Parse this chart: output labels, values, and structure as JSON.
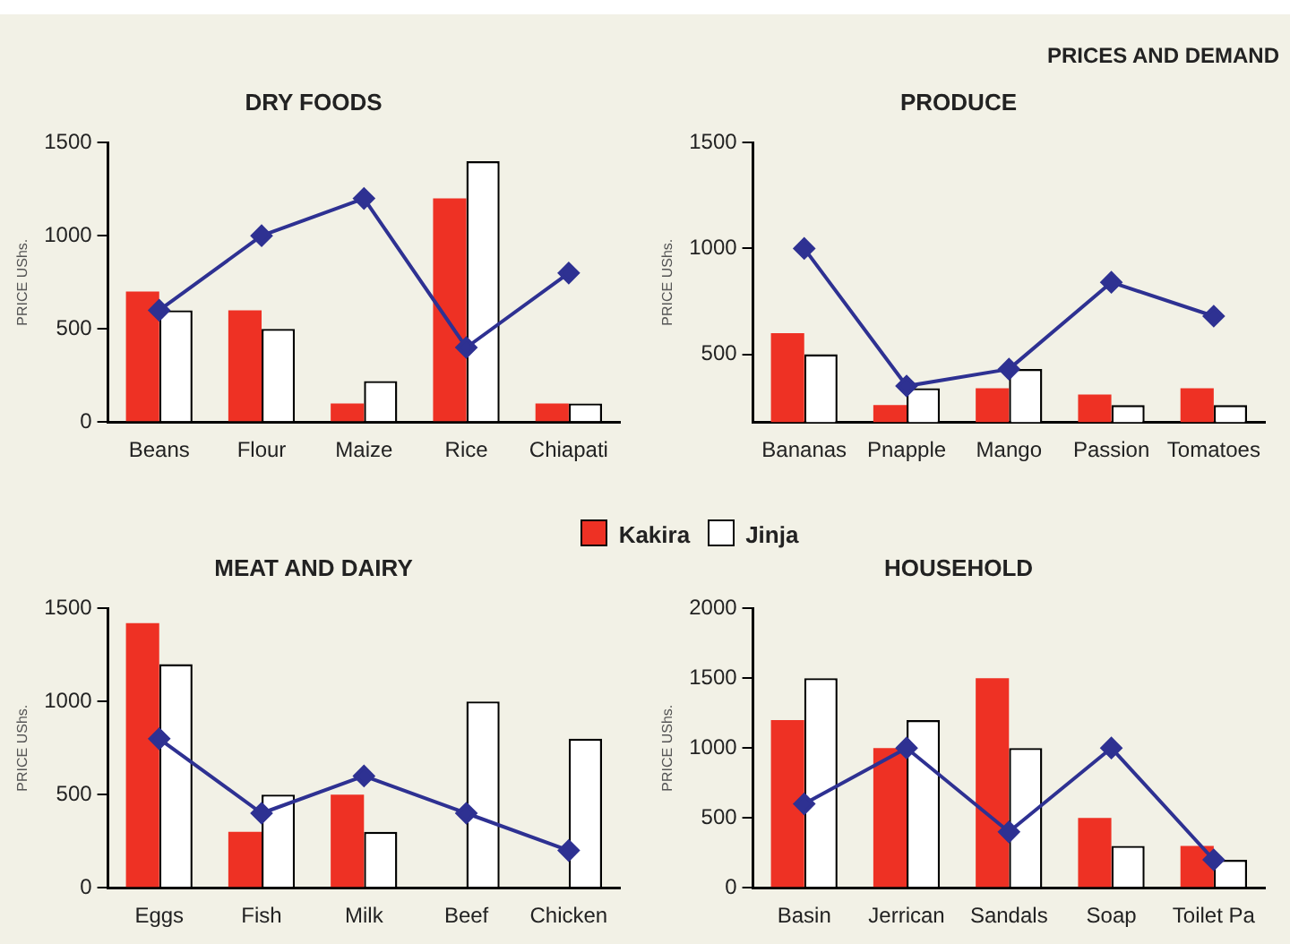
{
  "chart_data": [
    {
      "type": "bar",
      "title": "DRY FOODS",
      "ylabel": "PRICE UShs.",
      "categories": [
        "Beans",
        "Flour",
        "Maize",
        "Rice",
        "Chiapati"
      ],
      "ylim": [
        0,
        1500
      ],
      "yticks": [
        0,
        500,
        1000,
        1500
      ],
      "legend": "bottom",
      "marker": "diamond",
      "annotations": [
        "PRICES AND DEMAND"
      ],
      "series": [
        {
          "name": "Kakira",
          "color": "#ee3124",
          "values": [
            700,
            600,
            100,
            1200,
            100
          ]
        },
        {
          "name": "Jinja",
          "color": "#ffffff",
          "values": [
            600,
            500,
            220,
            1400,
            100
          ]
        },
        {
          "type": "line",
          "color": "#2e3192",
          "values": [
            600,
            1000,
            1200,
            400,
            800
          ]
        }
      ]
    },
    {
      "type": "bar",
      "title": "PRODUCE",
      "ylabel": "PRICE UShs.",
      "categories": [
        "Bananas",
        "Pnapple",
        "Mango",
        "Passion",
        "Tomatoes"
      ],
      "ylim": [
        180,
        1500
      ],
      "yticks": [
        500,
        1000,
        1500
      ],
      "marker": "diamond",
      "series": [
        {
          "color": "#ee3124",
          "values": [
            600,
            260,
            340,
            310,
            340
          ]
        },
        {
          "color": "#ffffff",
          "values": [
            500,
            340,
            430,
            260,
            260
          ]
        },
        {
          "type": "line",
          "color": "#2e3192",
          "values": [
            1000,
            350,
            430,
            840,
            680
          ]
        }
      ]
    },
    {
      "type": "bar",
      "title": "MEAT AND DAIRY",
      "ylabel": "PRICE UShs.",
      "categories": [
        "Eggs",
        "Fish",
        "Milk",
        "Beef",
        "Chicken"
      ],
      "ylim": [
        0,
        1500
      ],
      "yticks": [
        0,
        500,
        1000,
        1500
      ],
      "marker": "diamond",
      "series": [
        {
          "color": "#ee3124",
          "values": [
            1420,
            300,
            500,
            0,
            0
          ]
        },
        {
          "color": "#ffffff",
          "values": [
            1200,
            500,
            300,
            1000,
            800
          ]
        },
        {
          "type": "line",
          "color": "#2e3192",
          "values": [
            800,
            400,
            600,
            400,
            200
          ]
        }
      ]
    },
    {
      "type": "bar",
      "title": "HOUSEHOLD",
      "ylabel": "PRICE UShs.",
      "categories": [
        "Basin",
        "Jerrican",
        "Sandals",
        "Soap",
        "Toilet Pa"
      ],
      "ylim": [
        0,
        2000
      ],
      "yticks": [
        0,
        500,
        1000,
        1500,
        2000
      ],
      "marker": "diamond",
      "series": [
        {
          "color": "#ee3124",
          "values": [
            1200,
            1000,
            1500,
            500,
            300
          ]
        },
        {
          "color": "#ffffff",
          "values": [
            1500,
            1200,
            1000,
            300,
            200
          ]
        },
        {
          "type": "line",
          "color": "#2e3192",
          "values": [
            600,
            1000,
            400,
            1000,
            200
          ]
        }
      ]
    }
  ]
}
